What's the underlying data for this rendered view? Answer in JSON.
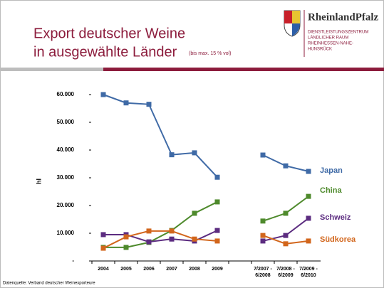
{
  "header": {
    "title_line1": "Export deutscher Weine",
    "title_line2": "in ausgewählte Länder",
    "subtitle": "(bis max. 15 % vol)",
    "logo": {
      "name": "RheinlandPfalz",
      "lines": [
        "DIENSTLEISTUNGSZENTRUM",
        "LÄNDLICHER RAUM",
        "RHEINHESSEN-NAHE-",
        "HUNSRÜCK"
      ]
    }
  },
  "chart_data": {
    "type": "line",
    "y_label": "hl",
    "categories": [
      "2004",
      "2005",
      "2006",
      "2007",
      "2008",
      "2009",
      null,
      "7/2007 - 6/2008",
      "7/2008 - 6/2009",
      "7/2009 - 6/2010"
    ],
    "series": [
      {
        "name": "Japan",
        "color": "#3f6aa6",
        "values": [
          60000,
          57000,
          56500,
          38300,
          39000,
          30200,
          null,
          38200,
          34300,
          32300
        ]
      },
      {
        "name": "China",
        "color": "#4e8a2c",
        "values": [
          4900,
          4900,
          6700,
          11000,
          17200,
          21300,
          null,
          14400,
          17200,
          23300
        ]
      },
      {
        "name": "Schweiz",
        "color": "#5c2c80",
        "values": [
          9500,
          9500,
          6900,
          7900,
          7200,
          11000,
          null,
          7200,
          9200,
          15400
        ]
      },
      {
        "name": "Südkorea",
        "color": "#d2661c",
        "values": [
          4600,
          8700,
          10800,
          10800,
          7900,
          7200,
          null,
          9200,
          6200,
          7200
        ]
      }
    ],
    "ylim": [
      0,
      60000
    ],
    "yticks": [
      {
        "value": 0,
        "label": "-"
      },
      {
        "value": 10000,
        "label": "10.000"
      },
      {
        "value": 20000,
        "label": "20.000"
      },
      {
        "value": 30000,
        "label": "30.000"
      },
      {
        "value": 40000,
        "label": "40.000"
      },
      {
        "value": 50000,
        "label": "50.000"
      },
      {
        "value": 60000,
        "label": "60.000"
      }
    ]
  },
  "footer": {
    "source": "Datenquelle: Verband deutscher Weinexporteure"
  }
}
